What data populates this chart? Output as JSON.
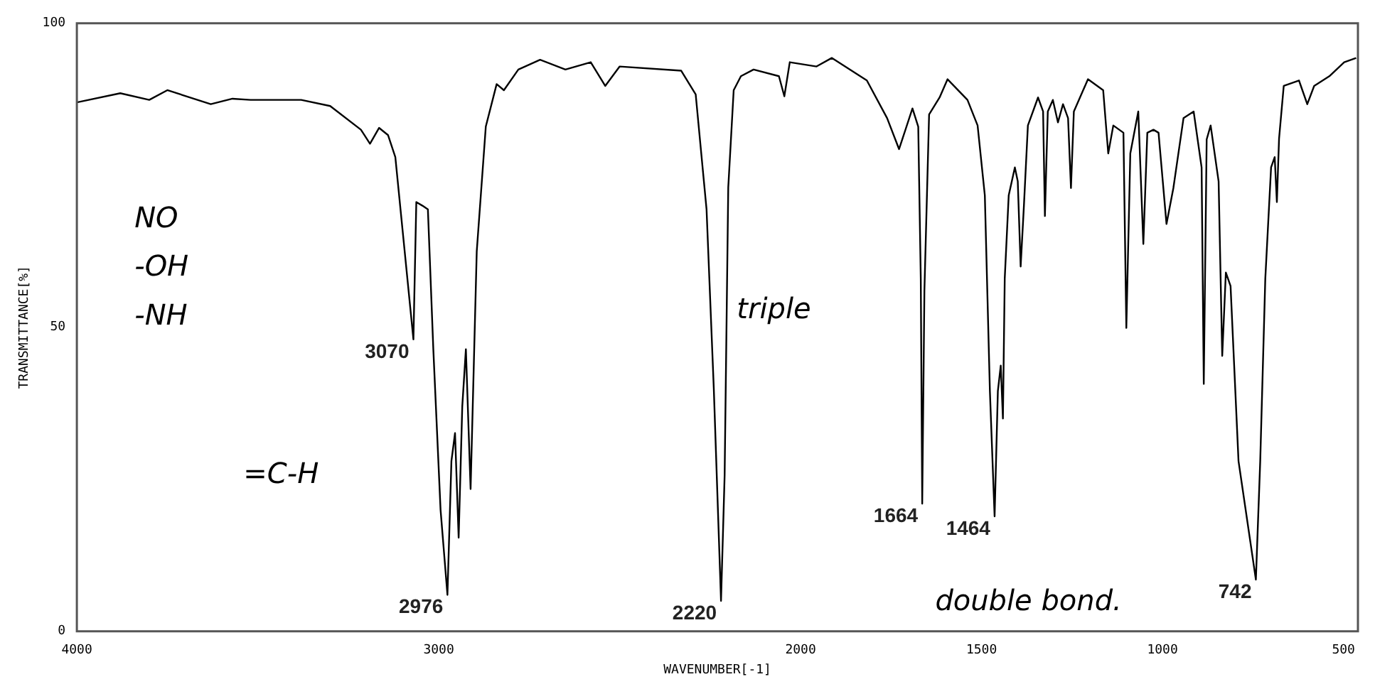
{
  "chart_data": {
    "type": "line",
    "xlabel": "WAVENUMBER[-1]",
    "ylabel": "TRANSMITTANCE[%]",
    "x": [
      4000,
      3880,
      3800,
      3750,
      3630,
      3570,
      3520,
      3380,
      3300,
      3215,
      3190,
      3165,
      3140,
      3120,
      3100,
      3070,
      3062,
      3045,
      3030,
      3015,
      2995,
      2976,
      2965,
      2955,
      2945,
      2935,
      2925,
      2912,
      2895,
      2870,
      2840,
      2820,
      2780,
      2720,
      2650,
      2580,
      2540,
      2500,
      2330,
      2290,
      2260,
      2240,
      2220,
      2210,
      2200,
      2185,
      2165,
      2130,
      2060,
      2045,
      2030,
      1956,
      1914,
      1817,
      1761,
      1728,
      1691,
      1675,
      1668,
      1664,
      1658,
      1645,
      1616,
      1594,
      1539,
      1511,
      1491,
      1477,
      1464,
      1455,
      1447,
      1441,
      1436,
      1425,
      1408,
      1400,
      1392,
      1383,
      1372,
      1344,
      1330,
      1325,
      1317,
      1303,
      1289,
      1275,
      1261,
      1253,
      1245,
      1206,
      1164,
      1150,
      1136,
      1108,
      1100,
      1089,
      1067,
      1053,
      1042,
      1025,
      1011,
      989,
      970,
      942,
      914,
      892,
      886,
      878,
      867,
      845,
      835,
      825,
      812,
      790,
      742,
      730,
      716,
      700,
      690,
      684,
      678,
      665,
      623,
      600,
      581,
      539,
      498,
      465
    ],
    "series": [
      {
        "color": "#000000",
        "values": [
          87,
          88.5,
          87.4,
          89,
          86.7,
          87.6,
          87.4,
          87.4,
          86.4,
          82.5,
          80.2,
          82.8,
          81.6,
          78,
          66,
          48,
          70.6,
          70,
          69.4,
          46.4,
          20,
          6,
          28,
          32.6,
          15.4,
          37,
          46.4,
          23.4,
          62.5,
          83,
          90,
          89,
          92.4,
          94,
          92.4,
          93.6,
          89.7,
          92.9,
          92.2,
          88.3,
          69.4,
          40,
          5,
          25.7,
          73,
          89,
          91.3,
          92.4,
          91.3,
          88,
          93.6,
          92.9,
          94.3,
          90.6,
          84.4,
          79.3,
          86,
          83,
          58,
          21,
          56,
          85,
          87.8,
          90.8,
          87.4,
          83.2,
          71.7,
          39.5,
          18.9,
          39.5,
          43.7,
          35,
          58,
          71.7,
          76.3,
          74,
          60,
          70,
          83.2,
          87.8,
          85.5,
          68.3,
          85.5,
          87.4,
          83.7,
          86.7,
          84.4,
          72.9,
          85.5,
          90.8,
          89,
          78.6,
          83.2,
          82,
          49.9,
          78.6,
          85.5,
          63.7,
          82,
          82.5,
          82,
          67,
          72.9,
          84.4,
          85.5,
          76.3,
          40.7,
          80.9,
          83.2,
          74,
          45.3,
          59,
          56.8,
          28,
          8.5,
          28,
          58,
          76.3,
          78,
          70.6,
          81,
          89.7,
          90.6,
          86.7,
          89.7,
          91.3,
          93.6,
          94.3
        ]
      }
    ],
    "xlim": [
      4000,
      460
    ],
    "xticks": [
      4000,
      3000,
      2000,
      1500,
      1000,
      500
    ],
    "ylim": [
      0,
      100
    ],
    "yticks": [
      0,
      50,
      100
    ],
    "grid": false,
    "legend": false,
    "marker": "none",
    "line_style": "solid",
    "annotations": [
      {
        "text": "3070",
        "x": 3070,
        "y": 48
      },
      {
        "text": "2976",
        "x": 2976,
        "y": 6
      },
      {
        "text": "2220",
        "x": 2220,
        "y": 5
      },
      {
        "text": "1664",
        "x": 1664,
        "y": 21
      },
      {
        "text": "1464",
        "x": 1464,
        "y": 18.9
      },
      {
        "text": "742",
        "x": 742,
        "y": 8.5
      },
      "NO",
      "-OH",
      "-NH",
      "=C-H",
      {
        "text": "triple",
        "x": 2200,
        "y": 55
      },
      "double bond."
    ]
  }
}
